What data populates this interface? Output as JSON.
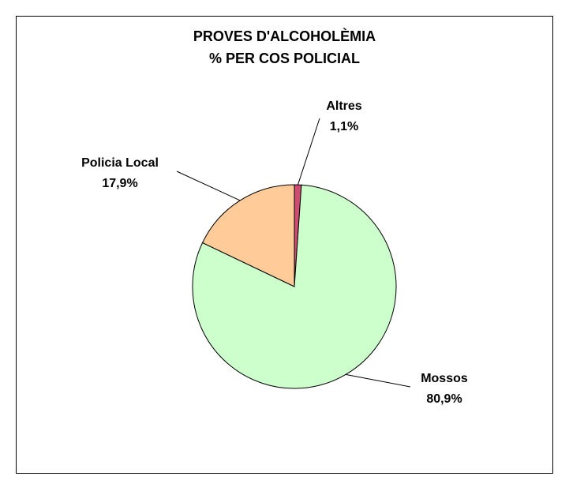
{
  "chart_data": {
    "type": "pie",
    "title_lines": [
      "PROVES D'ALCOHOLÈMIA",
      "% PER COS POLICIAL"
    ],
    "slices": [
      {
        "label": "Altres",
        "value": 1.1,
        "value_label": "1,1%",
        "color": "#cc4c72"
      },
      {
        "label": "Mossos",
        "value": 80.9,
        "value_label": "80,9%",
        "color": "#ccffcc"
      },
      {
        "label": "Policia Local",
        "value": 17.9,
        "value_label": "17,9%",
        "color": "#ffcc99"
      }
    ]
  }
}
